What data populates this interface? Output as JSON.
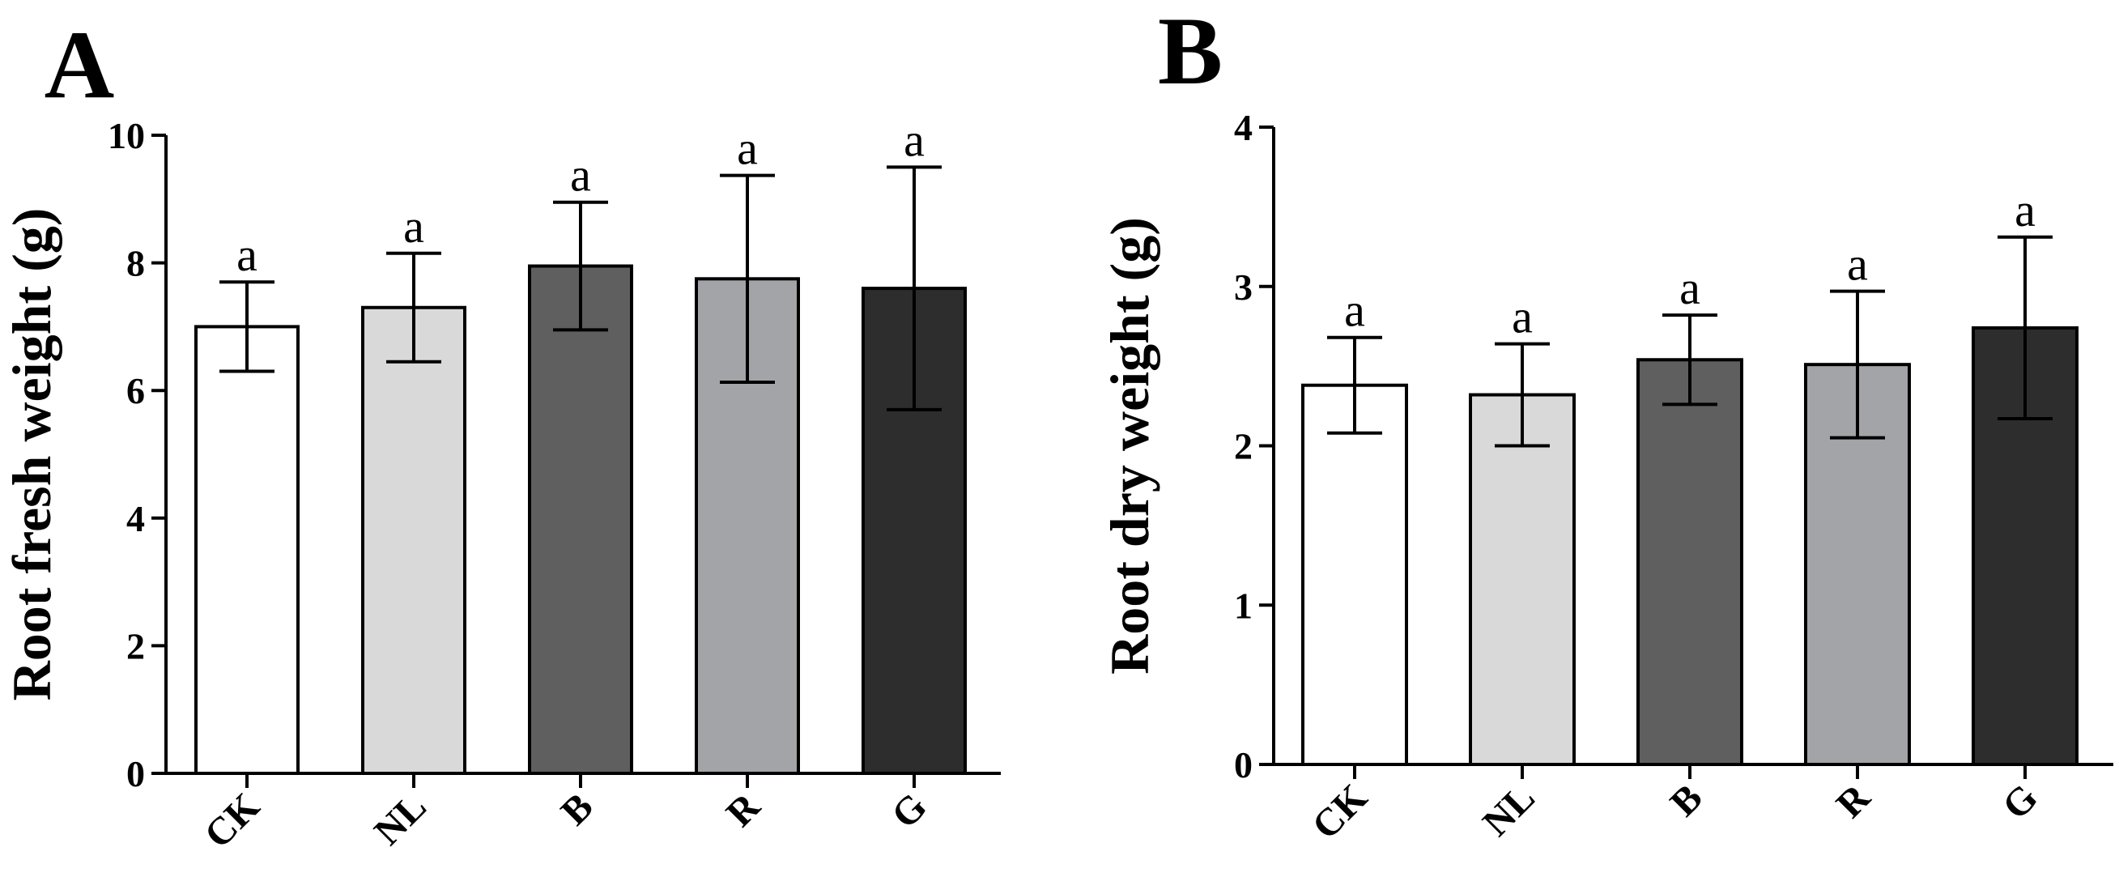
{
  "chart_data": [
    {
      "type": "bar",
      "panel_label": "A",
      "title": "",
      "xlabel": "",
      "ylabel": "Root fresh weight (g)",
      "ylim": [
        0,
        10
      ],
      "yticks": [
        "0",
        "2",
        "4",
        "6",
        "8",
        "10"
      ],
      "categories": [
        "CK",
        "NL",
        "B",
        "R",
        "G"
      ],
      "values": [
        7.0,
        7.3,
        7.95,
        7.75,
        7.6
      ],
      "errors": [
        0.7,
        0.85,
        1.0,
        1.62,
        1.9
      ],
      "significance": [
        "a",
        "a",
        "a",
        "a",
        "a"
      ],
      "colors": [
        "#ffffff",
        "#d9d9d9",
        "#5f5f5f",
        "#a3a4a7",
        "#2d2d2d"
      ]
    },
    {
      "type": "bar",
      "panel_label": "B",
      "title": "",
      "xlabel": "",
      "ylabel": "Root dry weight (g)",
      "ylim": [
        0,
        4
      ],
      "yticks": [
        "0",
        "1",
        "2",
        "3",
        "4"
      ],
      "categories": [
        "CK",
        "NL",
        "B",
        "R",
        "G"
      ],
      "values": [
        2.38,
        2.32,
        2.54,
        2.51,
        2.74
      ],
      "errors": [
        0.3,
        0.32,
        0.28,
        0.46,
        0.57
      ],
      "significance": [
        "a",
        "a",
        "a",
        "a",
        "a"
      ],
      "colors": [
        "#ffffff",
        "#d9d9d9",
        "#5f5f5f",
        "#a3a4a7",
        "#2d2d2d"
      ]
    }
  ]
}
